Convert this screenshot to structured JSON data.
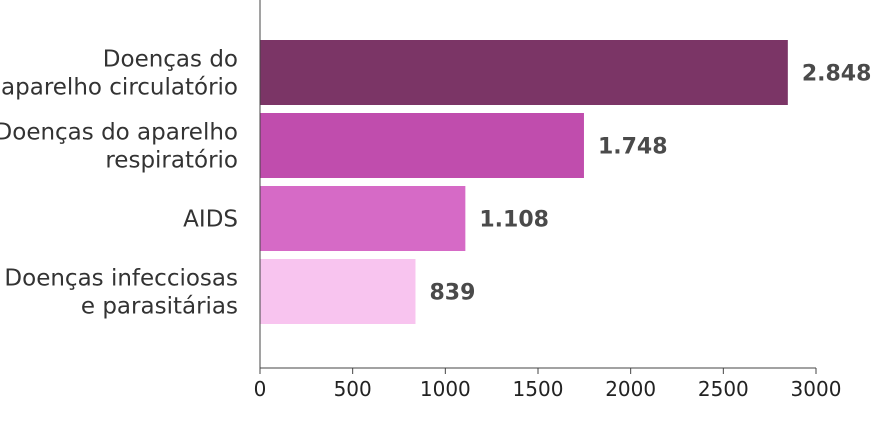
{
  "chart_data": {
    "type": "bar",
    "orientation": "horizontal",
    "categories": [
      [
        "Doenças do",
        "aparelho circulatório"
      ],
      [
        "Doenças do aparelho",
        "respiratório"
      ],
      [
        "AIDS"
      ],
      [
        "Doenças infecciosas",
        "e parasitárias"
      ]
    ],
    "values": [
      2848,
      1748,
      1108,
      839
    ],
    "value_labels": [
      "2.848",
      "1.748",
      "1.108",
      "839"
    ],
    "colors": [
      "#7b3566",
      "#c04dad",
      "#d66ac6",
      "#f8c4ef"
    ],
    "xlim": [
      0,
      3000
    ],
    "xticks": [
      0,
      500,
      1000,
      1500,
      2000,
      2500,
      3000
    ],
    "grid": false,
    "legend": "none"
  }
}
